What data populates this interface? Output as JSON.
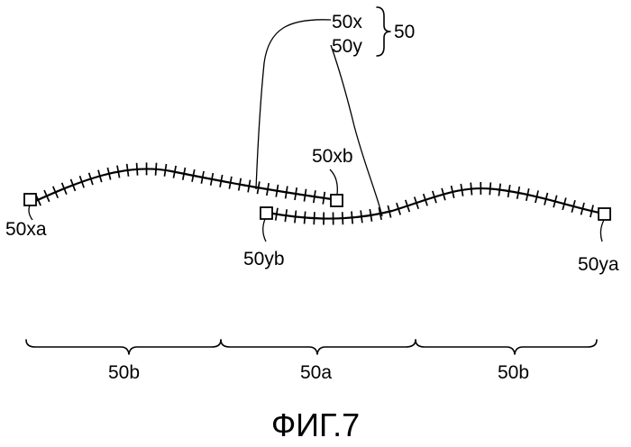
{
  "labels": {
    "member_x": "50x",
    "member_y": "50y",
    "assembly": "50",
    "x_end_a": "50xa",
    "x_end_b": "50xb",
    "y_end_b": "50yb",
    "y_end_a": "50ya",
    "section_left": "50b",
    "section_middle": "50a",
    "section_right": "50b"
  },
  "caption": "ФИГ.7",
  "colors": {
    "ink": "#000000",
    "paper": "#ffffff"
  }
}
